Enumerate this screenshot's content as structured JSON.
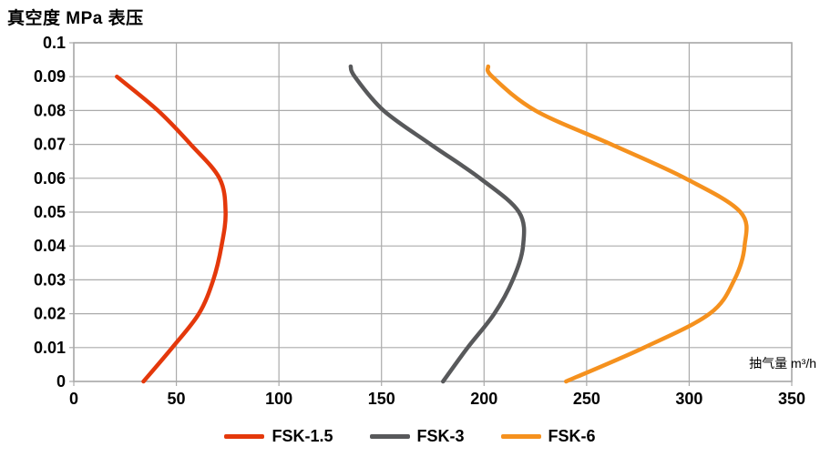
{
  "chart_data": {
    "type": "line",
    "title": "真空度 MPa 表压",
    "xlabel": "抽气量 m³/h",
    "ylabel": "真空度 MPa 表压",
    "xlim": [
      0,
      350
    ],
    "ylim": [
      0,
      0.1
    ],
    "x_ticks": [
      0,
      50,
      100,
      150,
      200,
      250,
      300,
      350
    ],
    "x_tick_labels": [
      "0",
      "50",
      "100",
      "150",
      "200",
      "250",
      "300",
      "350"
    ],
    "y_ticks": [
      0,
      0.01,
      0.02,
      0.03,
      0.04,
      0.05,
      0.06,
      0.07,
      0.08,
      0.09,
      0.1
    ],
    "y_tick_labels": [
      "0",
      "0.01",
      "0.02",
      "0.03",
      "0.04",
      "0.05",
      "0.06",
      "0.07",
      "0.08",
      "0.09",
      "0.1"
    ],
    "grid": true,
    "legend_position": "bottom",
    "colors": {
      "grid": "#ABABAB",
      "axis_text": "#000000",
      "background": "#FFFFFF"
    },
    "series": [
      {
        "name": "FSK-1.5",
        "color": "#E4380B",
        "points": [
          [
            34,
            0
          ],
          [
            48,
            0.01
          ],
          [
            61,
            0.02
          ],
          [
            68,
            0.03
          ],
          [
            72,
            0.04
          ],
          [
            74,
            0.05
          ],
          [
            71,
            0.06
          ],
          [
            57,
            0.07
          ],
          [
            41,
            0.08
          ],
          [
            21,
            0.09
          ]
        ]
      },
      {
        "name": "FSK-3",
        "color": "#58595B",
        "points": [
          [
            180,
            0
          ],
          [
            192,
            0.01
          ],
          [
            205,
            0.02
          ],
          [
            214,
            0.03
          ],
          [
            219,
            0.04
          ],
          [
            217,
            0.05
          ],
          [
            198,
            0.06
          ],
          [
            174,
            0.07
          ],
          [
            151,
            0.08
          ],
          [
            137,
            0.09
          ],
          [
            135,
            0.093
          ]
        ]
      },
      {
        "name": "FSK-6",
        "color": "#F5911E",
        "points": [
          [
            240,
            0
          ],
          [
            278,
            0.01
          ],
          [
            310,
            0.02
          ],
          [
            322,
            0.03
          ],
          [
            327,
            0.04
          ],
          [
            325,
            0.05
          ],
          [
            298,
            0.06
          ],
          [
            262,
            0.07
          ],
          [
            225,
            0.08
          ],
          [
            204,
            0.09
          ],
          [
            202,
            0.093
          ]
        ]
      }
    ]
  }
}
